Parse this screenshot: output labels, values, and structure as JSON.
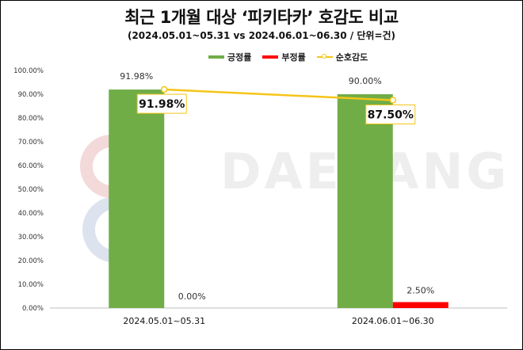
{
  "title": "최근 1개월 대상 ‘피키타카’ 호감도 비교",
  "subtitle": "(2024.05.01~05.31  vs 2024.06.01~06.30  / 단위=건)",
  "watermark": "DAESANG",
  "legend": [
    {
      "label": "긍정률",
      "color": "#70AD47",
      "kind": "bar"
    },
    {
      "label": "부정률",
      "color": "#FF0000",
      "kind": "bar"
    },
    {
      "label": "순호감도",
      "color": "#F5C518",
      "kind": "line"
    }
  ],
  "chart_data": {
    "type": "bar",
    "categories": [
      "2024.05.01~05.31",
      "2024.06.01~06.30"
    ],
    "series": [
      {
        "name": "긍정률",
        "color": "#70AD47",
        "values": [
          91.98,
          90.0
        ],
        "labels": [
          "91.98%",
          "90.00%"
        ]
      },
      {
        "name": "부정률",
        "color": "#FF0000",
        "values": [
          0.0,
          2.5
        ],
        "labels": [
          "0.00%",
          "2.50%"
        ]
      }
    ],
    "line": {
      "name": "순호감도",
      "color": "#F5C518",
      "values": [
        91.98,
        87.5
      ],
      "labels": [
        "91.98%",
        "87.50%"
      ]
    },
    "ylim": [
      0,
      100
    ],
    "yticks": [
      "0.00%",
      "10.00%",
      "20.00%",
      "30.00%",
      "40.00%",
      "50.00%",
      "60.00%",
      "70.00%",
      "80.00%",
      "90.00%",
      "100.00%"
    ],
    "grid": false,
    "legend_position": "top-right"
  }
}
